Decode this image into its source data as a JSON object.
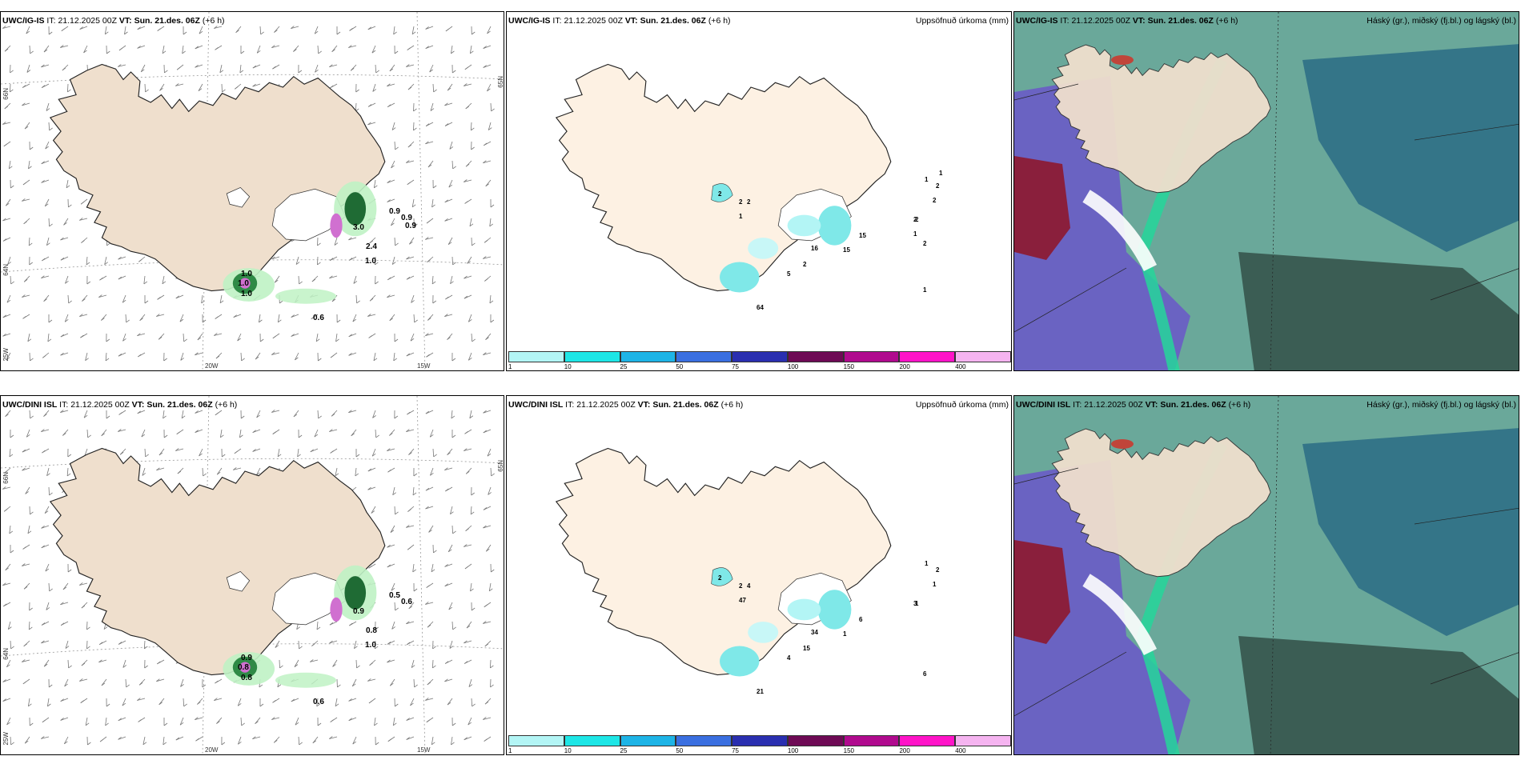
{
  "colors": {
    "land": "#efdfcd",
    "land_light": "#fdf1e3",
    "snow": "#ffffff",
    "green_light": "#bff2c4",
    "green_dark": "#0a3d1a",
    "purple": "#d070d0",
    "cyan": "#7fe8e8",
    "sea_teal": "#6aa89a",
    "deep_teal": "#2f6f86",
    "blue_purple": "#6a63c2",
    "maroon": "#8a1f3c",
    "mint": "#24d69a"
  },
  "panels": [
    {
      "id": "igis-wind",
      "model": "UWC/IG-IS",
      "it_label": "IT:",
      "it_value": "21.12.2025 00Z",
      "vt_label": "VT:",
      "vt_value": "Sun. 21.des. 06Z",
      "lead": "(+6 h)",
      "right_title": "",
      "coords": {
        "lon1": "20W",
        "lon2": "15W",
        "lat1": "66N",
        "lat2": "64N",
        "lon_left": "25W",
        "lat_right": "65N"
      },
      "labels": [
        "1.0",
        "1.0",
        "1.0",
        "0.6",
        "0.9",
        "0.9",
        "2.4",
        "3.0",
        "1.0",
        "0.9"
      ]
    },
    {
      "id": "igis-precip",
      "model": "UWC/IG-IS",
      "it_label": "IT:",
      "it_value": "21.12.2025 00Z",
      "vt_label": "VT:",
      "vt_value": "Sun. 21.des. 06Z",
      "lead": "(+6 h)",
      "right_title": "Uppsöfnuð úrkoma (mm)",
      "labels": [
        "2",
        "2",
        "2",
        "1",
        "5",
        "64",
        "16",
        "2",
        "15",
        "15",
        "1",
        "2",
        "2",
        "2",
        "1",
        "2",
        "1",
        "2",
        "1"
      ]
    },
    {
      "id": "igis-cloud",
      "model": "UWC/IG-IS",
      "it_label": "IT:",
      "it_value": "21.12.2025 00Z",
      "vt_label": "VT:",
      "vt_value": "Sun. 21.des. 06Z",
      "lead": "(+6 h)",
      "right_title": "Háský (gr.), miðský (fj.bl.) og lágský (bl.)"
    },
    {
      "id": "dini-wind",
      "model": "UWC/DINI ISL",
      "it_label": "IT:",
      "it_value": "21.12.2025 00Z",
      "vt_label": "VT:",
      "vt_value": "Sun. 21.des. 06Z",
      "lead": "(+6 h)",
      "right_title": "",
      "coords": {
        "lon1": "20W",
        "lon2": "15W",
        "lat1": "66N",
        "lat2": "64N",
        "lon_left": "25W",
        "lat_right": "65N"
      },
      "labels": [
        "0.9",
        "0.8",
        "0.8",
        "0.6",
        "0.6",
        "0.5",
        "0.8",
        "0.9",
        "1.0"
      ]
    },
    {
      "id": "dini-precip",
      "model": "UWC/DINI ISL",
      "it_label": "IT:",
      "it_value": "21.12.2025 00Z",
      "vt_label": "VT:",
      "vt_value": "Sun. 21.des. 06Z",
      "lead": "(+6 h)",
      "right_title": "Uppsöfnuð úrkoma (mm)",
      "labels": [
        "2",
        "2",
        "4",
        "47",
        "4",
        "21",
        "34",
        "15",
        "1",
        "6",
        "6",
        "3",
        "1",
        "2",
        "1",
        "1"
      ]
    },
    {
      "id": "dini-cloud",
      "model": "UWC/DINI ISL",
      "it_label": "IT:",
      "it_value": "21.12.2025 00Z",
      "vt_label": "VT:",
      "vt_value": "Sun. 21.des. 06Z",
      "lead": "(+6 h)",
      "right_title": "Háský (gr.), miðský (fj.bl.) og lágský (bl.)"
    }
  ],
  "colorbar": {
    "ticks": [
      "1",
      "10",
      "25",
      "50",
      "75",
      "100",
      "150",
      "200",
      "400"
    ],
    "colors": [
      "#b3f5f5",
      "#1ee6e6",
      "#1eb4e6",
      "#3a6fe0",
      "#2a2fb0",
      "#6e0a55",
      "#b00a8e",
      "#ff14c8",
      "#f5b4f0"
    ]
  }
}
